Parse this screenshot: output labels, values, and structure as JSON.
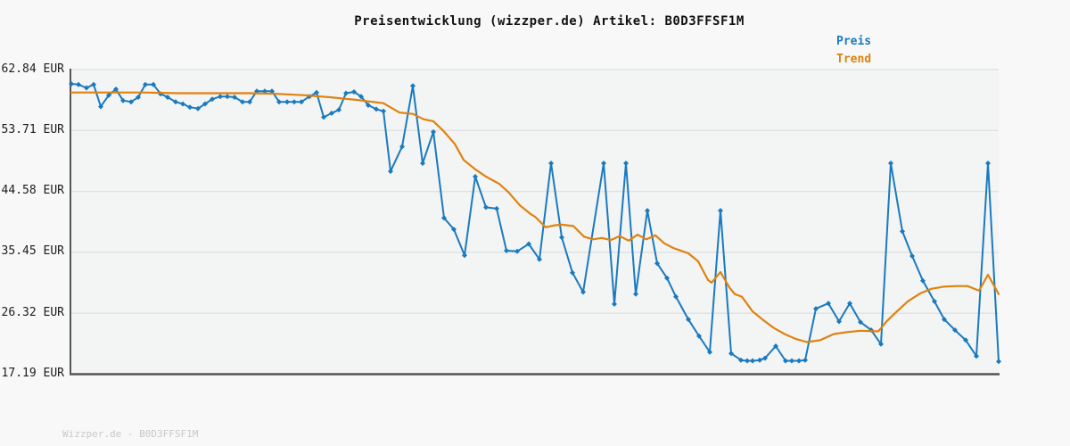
{
  "header": {
    "title": "Preisentwicklung (wizzper.de) Artikel: B0D3FFSF1M"
  },
  "legend": [
    {
      "label": "Preis",
      "color": "#1a7abf"
    },
    {
      "label": "Trend",
      "color": "#dd820e"
    }
  ],
  "footer": {
    "watermark": "Wizzper.de - B0D3FFSF1M"
  },
  "y_axis": {
    "unit": "EUR",
    "tick_labels": [
      "62.84 EUR",
      "53.71 EUR",
      "44.58 EUR",
      "35.45 EUR",
      "26.32 EUR",
      "17.19 EUR"
    ],
    "tick_values": [
      62.84,
      53.71,
      44.58,
      35.45,
      26.32,
      17.19
    ]
  },
  "chart_data": {
    "type": "line",
    "title": "Preisentwicklung (wizzper.de) Artikel: B0D3FFSF1M",
    "ylabel": "EUR",
    "ylim": [
      17.19,
      62.84
    ],
    "gridlines_y": [
      62.84,
      53.71,
      44.58,
      35.45,
      26.32
    ],
    "grid": "horizontal-only",
    "x_axis_note": "no x tick labels shown in original; x = horizontal position in plot pixels (0-1040, time axis)",
    "legend_position": "top-right",
    "series": [
      {
        "name": "Preis",
        "color": "#1a7abf",
        "marker": "diamond",
        "line_width": 2,
        "points": [
          [
            0,
            60.7
          ],
          [
            8,
            60.6
          ],
          [
            17,
            60.1
          ],
          [
            25,
            60.6
          ],
          [
            33,
            57.3
          ],
          [
            42,
            59.0
          ],
          [
            50,
            59.9
          ],
          [
            58,
            58.2
          ],
          [
            67,
            58.0
          ],
          [
            75,
            58.7
          ],
          [
            83,
            60.6
          ],
          [
            92,
            60.6
          ],
          [
            100,
            59.2
          ],
          [
            108,
            58.7
          ],
          [
            117,
            58.0
          ],
          [
            125,
            57.7
          ],
          [
            133,
            57.2
          ],
          [
            142,
            57.0
          ],
          [
            150,
            57.7
          ],
          [
            158,
            58.4
          ],
          [
            167,
            58.8
          ],
          [
            175,
            58.8
          ],
          [
            183,
            58.7
          ],
          [
            192,
            58.0
          ],
          [
            200,
            58.0
          ],
          [
            208,
            59.6
          ],
          [
            217,
            59.6
          ],
          [
            225,
            59.6
          ],
          [
            233,
            58.0
          ],
          [
            242,
            58.0
          ],
          [
            250,
            58.0
          ],
          [
            258,
            58.0
          ],
          [
            267,
            58.8
          ],
          [
            275,
            59.4
          ],
          [
            283,
            55.7
          ],
          [
            292,
            56.3
          ],
          [
            300,
            56.8
          ],
          [
            308,
            59.3
          ],
          [
            317,
            59.5
          ],
          [
            325,
            58.8
          ],
          [
            333,
            57.5
          ],
          [
            342,
            56.9
          ],
          [
            350,
            56.6
          ],
          [
            358,
            47.6
          ],
          [
            371,
            51.3
          ],
          [
            383,
            60.4
          ],
          [
            394,
            48.8
          ],
          [
            406,
            53.5
          ],
          [
            418,
            40.6
          ],
          [
            429,
            38.9
          ],
          [
            441,
            35.0
          ],
          [
            453,
            46.8
          ],
          [
            465,
            42.2
          ],
          [
            477,
            42.0
          ],
          [
            488,
            35.7
          ],
          [
            500,
            35.6
          ],
          [
            513,
            36.7
          ],
          [
            525,
            34.4
          ],
          [
            538,
            48.8
          ],
          [
            550,
            37.7
          ],
          [
            562,
            32.4
          ],
          [
            574,
            29.5
          ],
          [
            597,
            48.8
          ],
          [
            609,
            27.7
          ],
          [
            622,
            48.8
          ],
          [
            633,
            29.2
          ],
          [
            646,
            41.7
          ],
          [
            657,
            33.8
          ],
          [
            668,
            31.6
          ],
          [
            678,
            28.8
          ],
          [
            692,
            25.4
          ],
          [
            704,
            22.9
          ],
          [
            716,
            20.5
          ],
          [
            728,
            41.7
          ],
          [
            740,
            20.3
          ],
          [
            751,
            19.3
          ],
          [
            758,
            19.2
          ],
          [
            764,
            19.2
          ],
          [
            772,
            19.3
          ],
          [
            778,
            19.6
          ],
          [
            790,
            21.4
          ],
          [
            801,
            19.2
          ],
          [
            808,
            19.2
          ],
          [
            816,
            19.2
          ],
          [
            823,
            19.3
          ],
          [
            835,
            27.0
          ],
          [
            849,
            27.8
          ],
          [
            861,
            25.1
          ],
          [
            873,
            27.8
          ],
          [
            885,
            25.0
          ],
          [
            897,
            23.8
          ],
          [
            908,
            21.7
          ],
          [
            919,
            48.8
          ],
          [
            932,
            38.6
          ],
          [
            943,
            34.9
          ],
          [
            955,
            31.2
          ],
          [
            968,
            28.1
          ],
          [
            979,
            25.4
          ],
          [
            991,
            23.8
          ],
          [
            1003,
            22.3
          ],
          [
            1015,
            19.9
          ],
          [
            1028,
            48.8
          ],
          [
            1040,
            19.1
          ]
        ]
      },
      {
        "name": "Trend",
        "color": "#e0820e",
        "marker": "none",
        "line_width": 2.2,
        "points": [
          [
            0,
            59.4
          ],
          [
            40,
            59.4
          ],
          [
            80,
            59.4
          ],
          [
            120,
            59.3
          ],
          [
            160,
            59.3
          ],
          [
            200,
            59.3
          ],
          [
            230,
            59.2
          ],
          [
            260,
            59.0
          ],
          [
            290,
            58.7
          ],
          [
            320,
            58.3
          ],
          [
            350,
            57.8
          ],
          [
            368,
            56.4
          ],
          [
            383,
            56.2
          ],
          [
            395,
            55.4
          ],
          [
            406,
            55.1
          ],
          [
            417,
            53.7
          ],
          [
            430,
            51.7
          ],
          [
            440,
            49.3
          ],
          [
            453,
            47.9
          ],
          [
            465,
            46.8
          ],
          [
            480,
            45.7
          ],
          [
            490,
            44.5
          ],
          [
            503,
            42.5
          ],
          [
            515,
            41.2
          ],
          [
            520,
            40.8
          ],
          [
            532,
            39.2
          ],
          [
            542,
            39.5
          ],
          [
            550,
            39.6
          ],
          [
            563,
            39.4
          ],
          [
            575,
            37.8
          ],
          [
            585,
            37.4
          ],
          [
            595,
            37.6
          ],
          [
            605,
            37.3
          ],
          [
            615,
            37.9
          ],
          [
            625,
            37.2
          ],
          [
            635,
            38.1
          ],
          [
            645,
            37.4
          ],
          [
            655,
            38.0
          ],
          [
            665,
            36.8
          ],
          [
            675,
            36.1
          ],
          [
            692,
            35.3
          ],
          [
            703,
            34.1
          ],
          [
            714,
            31.3
          ],
          [
            718,
            30.9
          ],
          [
            728,
            32.5
          ],
          [
            738,
            30.2
          ],
          [
            744,
            29.2
          ],
          [
            752,
            28.8
          ],
          [
            764,
            26.6
          ],
          [
            777,
            25.2
          ],
          [
            788,
            24.1
          ],
          [
            800,
            23.2
          ],
          [
            812,
            22.5
          ],
          [
            825,
            22.0
          ],
          [
            840,
            22.3
          ],
          [
            855,
            23.2
          ],
          [
            870,
            23.5
          ],
          [
            885,
            23.7
          ],
          [
            905,
            23.6
          ],
          [
            915,
            25.2
          ],
          [
            925,
            26.5
          ],
          [
            938,
            28.1
          ],
          [
            952,
            29.3
          ],
          [
            965,
            30.0
          ],
          [
            978,
            30.3
          ],
          [
            992,
            30.4
          ],
          [
            1005,
            30.4
          ],
          [
            1018,
            29.7
          ],
          [
            1028,
            32.1
          ],
          [
            1040,
            29.2
          ]
        ]
      }
    ]
  }
}
